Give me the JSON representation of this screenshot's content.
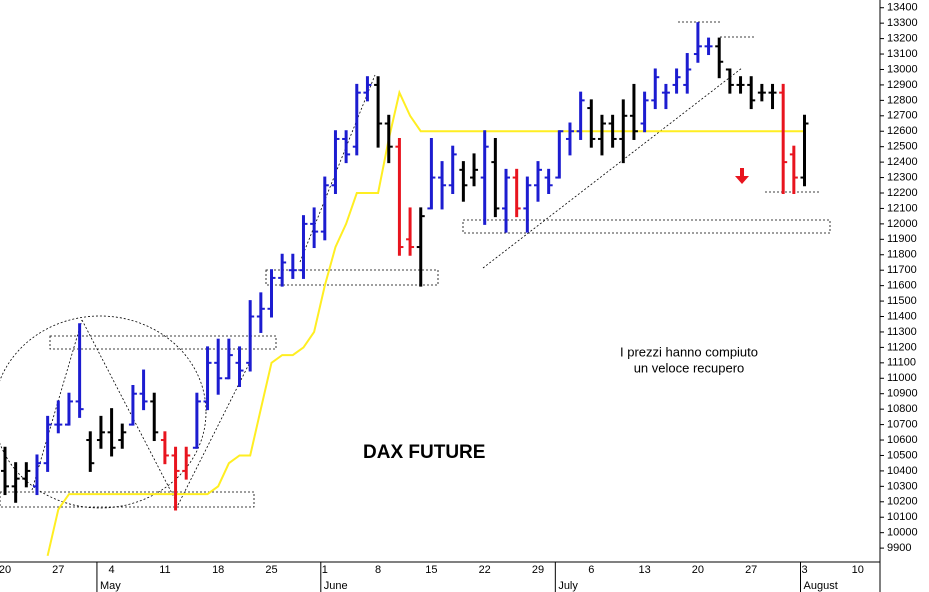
{
  "chart_data": {
    "type": "ohlc",
    "categories": [
      "20",
      null,
      null,
      null,
      null,
      "27",
      null,
      null,
      null,
      null,
      "4",
      null,
      null,
      null,
      null,
      "11",
      null,
      null,
      null,
      null,
      "18",
      null,
      null,
      null,
      null,
      "25",
      null,
      null,
      null,
      null,
      "1",
      null,
      null,
      null,
      null,
      "8",
      null,
      null,
      null,
      null,
      "15",
      null,
      null,
      null,
      null,
      "22",
      null,
      null,
      null,
      null,
      "29",
      null,
      null,
      null,
      null,
      "6",
      null,
      null,
      null,
      null,
      "13",
      null,
      null,
      null,
      null,
      "20",
      null,
      null,
      null,
      null,
      "27",
      null,
      null,
      null,
      null,
      "3",
      null,
      null,
      null,
      null,
      "10",
      null,
      null
    ],
    "months": [
      "May",
      "June",
      "July",
      "August"
    ],
    "month_starts": [
      9,
      30,
      52,
      75
    ],
    "open": [
      10400,
      10300,
      10350,
      10300,
      10450,
      10700,
      10700,
      10850,
      10600,
      10600,
      10650,
      10600,
      10700,
      10900,
      10850,
      10600,
      10500,
      10400,
      10550,
      10850,
      11100,
      11000,
      11100,
      11100,
      11400,
      11450,
      11650,
      11700,
      11700,
      12000,
      11950,
      12250,
      12550,
      12500,
      12850,
      12900,
      12650,
      12500,
      11900,
      11850,
      12100,
      12300,
      12250,
      12350,
      12300,
      12300,
      12400,
      12100,
      12300,
      12100,
      12250,
      12300,
      12300,
      12550,
      12600,
      12750,
      12550,
      12650,
      12550,
      12700,
      12650,
      12800,
      12850,
      12900,
      12900,
      13100,
      13150,
      13150,
      13000,
      12900,
      12900,
      12850,
      12850,
      12850,
      12450,
      12300,
      null,
      null,
      null,
      null,
      null,
      null,
      null
    ],
    "high": [
      10550,
      10450,
      10450,
      10500,
      10750,
      10850,
      10900,
      11350,
      10650,
      10750,
      10800,
      10700,
      10950,
      11050,
      10900,
      10650,
      10550,
      10550,
      10900,
      11200,
      11250,
      11250,
      11200,
      11500,
      11550,
      11700,
      11800,
      11800,
      12050,
      12100,
      12300,
      12600,
      12600,
      12900,
      12950,
      12950,
      12700,
      12550,
      12100,
      12100,
      12550,
      12400,
      12500,
      12400,
      12450,
      12600,
      12550,
      12350,
      12350,
      12300,
      12400,
      12350,
      12600,
      12650,
      12850,
      12800,
      12700,
      12700,
      12800,
      12900,
      12850,
      13000,
      12900,
      13000,
      13100,
      13300,
      13200,
      13200,
      13000,
      12950,
      12950,
      12900,
      12900,
      12900,
      12500,
      12700,
      null,
      null,
      null,
      null,
      null,
      null,
      null
    ],
    "low": [
      10250,
      10200,
      10300,
      10250,
      10400,
      10650,
      10700,
      10750,
      10400,
      10550,
      10500,
      10550,
      10700,
      10800,
      10600,
      10450,
      10150,
      10350,
      10550,
      10800,
      10900,
      11000,
      10950,
      11050,
      11300,
      11400,
      11600,
      11650,
      11650,
      11850,
      11900,
      12200,
      12400,
      12450,
      12800,
      12500,
      12400,
      11800,
      11800,
      11600,
      12100,
      12100,
      12200,
      12150,
      12250,
      12000,
      12050,
      11950,
      12050,
      11950,
      12150,
      12200,
      12300,
      12450,
      12550,
      12500,
      12450,
      12500,
      12400,
      12550,
      12600,
      12750,
      12750,
      12850,
      12850,
      13050,
      13100,
      12950,
      12850,
      12850,
      12750,
      12800,
      12750,
      12200,
      12200,
      12250,
      null,
      null,
      null,
      null,
      null,
      null,
      null
    ],
    "close": [
      10300,
      10350,
      10400,
      10450,
      10700,
      10700,
      10850,
      10800,
      10450,
      10650,
      10550,
      10650,
      10900,
      10850,
      10650,
      10500,
      10400,
      10500,
      10850,
      11100,
      11000,
      11150,
      11050,
      11400,
      11450,
      11650,
      11750,
      11700,
      12000,
      11950,
      12250,
      12550,
      12450,
      12850,
      12900,
      12650,
      12500,
      11850,
      11850,
      12050,
      12300,
      12250,
      12450,
      12250,
      12350,
      12500,
      12100,
      12300,
      12100,
      12250,
      12350,
      12250,
      12600,
      12600,
      12800,
      12550,
      12650,
      12550,
      12700,
      12600,
      12800,
      12950,
      12850,
      12950,
      13000,
      13150,
      13150,
      13050,
      12900,
      12900,
      12800,
      12850,
      12850,
      12400,
      12300,
      12650,
      null,
      null,
      null,
      null,
      null,
      null,
      null
    ],
    "colors": [
      "#000000",
      "#000000",
      "#000000",
      "#1c1cd0",
      "#1c1cd0",
      "#1c1cd0",
      "#1c1cd0",
      "#1c1cd0",
      "#000000",
      "#000000",
      "#000000",
      "#000000",
      "#1c1cd0",
      "#1c1cd0",
      "#000000",
      "#e8141e",
      "#e8141e",
      "#e8141e",
      "#1c1cd0",
      "#1c1cd0",
      "#1c1cd0",
      "#1c1cd0",
      "#1c1cd0",
      "#1c1cd0",
      "#1c1cd0",
      "#1c1cd0",
      "#1c1cd0",
      "#1c1cd0",
      "#1c1cd0",
      "#1c1cd0",
      "#1c1cd0",
      "#1c1cd0",
      "#1c1cd0",
      "#1c1cd0",
      "#1c1cd0",
      "#000000",
      "#000000",
      "#e8141e",
      "#e8141e",
      "#000000",
      "#1c1cd0",
      "#1c1cd0",
      "#1c1cd0",
      "#000000",
      "#000000",
      "#1c1cd0",
      "#000000",
      "#1c1cd0",
      "#e8141e",
      "#1c1cd0",
      "#1c1cd0",
      "#1c1cd0",
      "#1c1cd0",
      "#1c1cd0",
      "#1c1cd0",
      "#000000",
      "#000000",
      "#000000",
      "#000000",
      "#000000",
      "#1c1cd0",
      "#1c1cd0",
      "#1c1cd0",
      "#1c1cd0",
      "#1c1cd0",
      "#1c1cd0",
      "#1c1cd0",
      "#000000",
      "#000000",
      "#000000",
      "#000000",
      "#000000",
      "#000000",
      "#e8141e",
      "#e8141e",
      "#000000",
      null,
      null,
      null,
      null,
      null,
      null,
      null
    ],
    "ma": {
      "color": "#ffee22",
      "values": [
        null,
        null,
        null,
        null,
        9850,
        10150,
        10250,
        10250,
        10250,
        10250,
        10250,
        10250,
        10250,
        10250,
        10250,
        10250,
        10250,
        10250,
        10250,
        10250,
        10300,
        10450,
        10500,
        10500,
        10800,
        11100,
        11150,
        11150,
        11200,
        11300,
        11600,
        11850,
        12000,
        12200,
        12200,
        12200,
        12550,
        12850,
        12700,
        12600,
        12600,
        12600,
        12600,
        12600,
        12600,
        12600,
        12600,
        12600,
        12600,
        12600,
        12600,
        12600,
        12600,
        12600,
        12600,
        12600,
        12600,
        12600,
        12600,
        12600,
        12600,
        12600,
        12600,
        12600,
        12600,
        12600,
        12600,
        12600,
        12600,
        12600,
        12600,
        12600,
        12600,
        12600,
        12600,
        12600,
        null,
        null,
        null,
        null,
        null,
        null,
        null
      ]
    },
    "ylim": [
      9810,
      13450
    ],
    "yticks": [
      9900,
      10000,
      10100,
      10200,
      10300,
      10400,
      10500,
      10600,
      10700,
      10800,
      10900,
      11000,
      11100,
      11200,
      11300,
      11400,
      11500,
      11600,
      11700,
      11800,
      11900,
      12000,
      12100,
      12200,
      12300,
      12400,
      12500,
      12600,
      12700,
      12800,
      12900,
      13000,
      13100,
      13200,
      13300,
      13400
    ],
    "annotations": [
      "DAX FUTURE",
      "I prezzi hanno compiuto",
      "un veloce recupero"
    ]
  }
}
